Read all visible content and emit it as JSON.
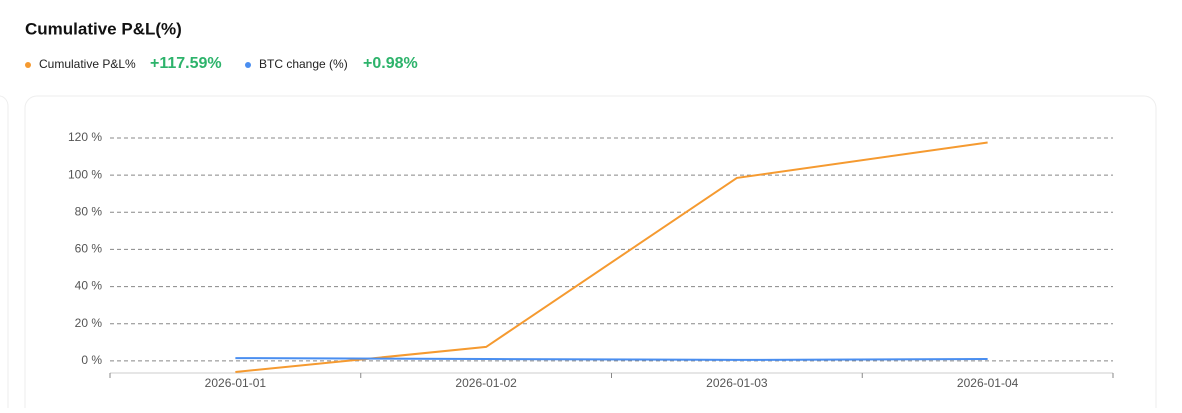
{
  "chart_data": {
    "type": "line",
    "title": "Cumulative P&L(%)",
    "categories": [
      "2026-01-01",
      "2026-01-02",
      "2026-01-03",
      "2026-01-04"
    ],
    "series": [
      {
        "name": "Cumulative P&L%",
        "color": "#f59a30",
        "total_label": "+117.59%",
        "values": [
          -6,
          7.5,
          98.5,
          117.59
        ]
      },
      {
        "name": "BTC change (%)",
        "color": "#4a8ef0",
        "total_label": "+0.98%",
        "values": [
          1.5,
          1,
          0.5,
          0.98
        ]
      }
    ],
    "ylim": [
      -6,
      120
    ],
    "yticks": [
      {
        "value": 0,
        "label": "0 %"
      },
      {
        "value": 20,
        "label": "20 %"
      },
      {
        "value": 40,
        "label": "40 %"
      },
      {
        "value": 60,
        "label": "60 %"
      },
      {
        "value": 80,
        "label": "80 %"
      },
      {
        "value": 100,
        "label": "100 %"
      },
      {
        "value": 120,
        "label": "120 %"
      }
    ],
    "grid": true
  }
}
